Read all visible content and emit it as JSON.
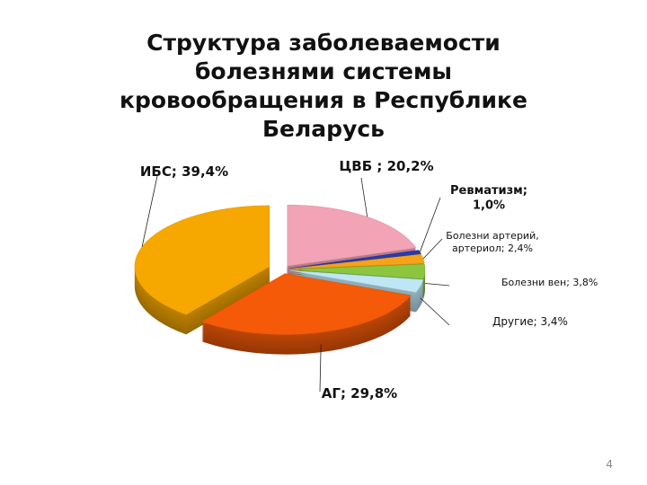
{
  "page_number": "4",
  "chart_data": {
    "type": "pie",
    "title": "Структура заболеваемости болезнями системы кровообращения в Республике Беларусь",
    "values": [
      20.2,
      1.0,
      2.4,
      3.8,
      3.4,
      29.8,
      39.4
    ],
    "value_labels": [
      "ЦВБ ; 20,2%",
      "Ревматизм;\n1,0%",
      "Болезни артерий,\nартериол; 2,4%",
      "Болезни вен; 3,8%",
      "Другие; 3,4%",
      "АГ; 29,8%",
      "ИБС; 39,4%"
    ],
    "colors": [
      "#f2a3b6",
      "#2a3aa8",
      "#f5a318",
      "#8cc63f",
      "#bfe6f5",
      "#f45a08",
      "#f6a800"
    ]
  }
}
